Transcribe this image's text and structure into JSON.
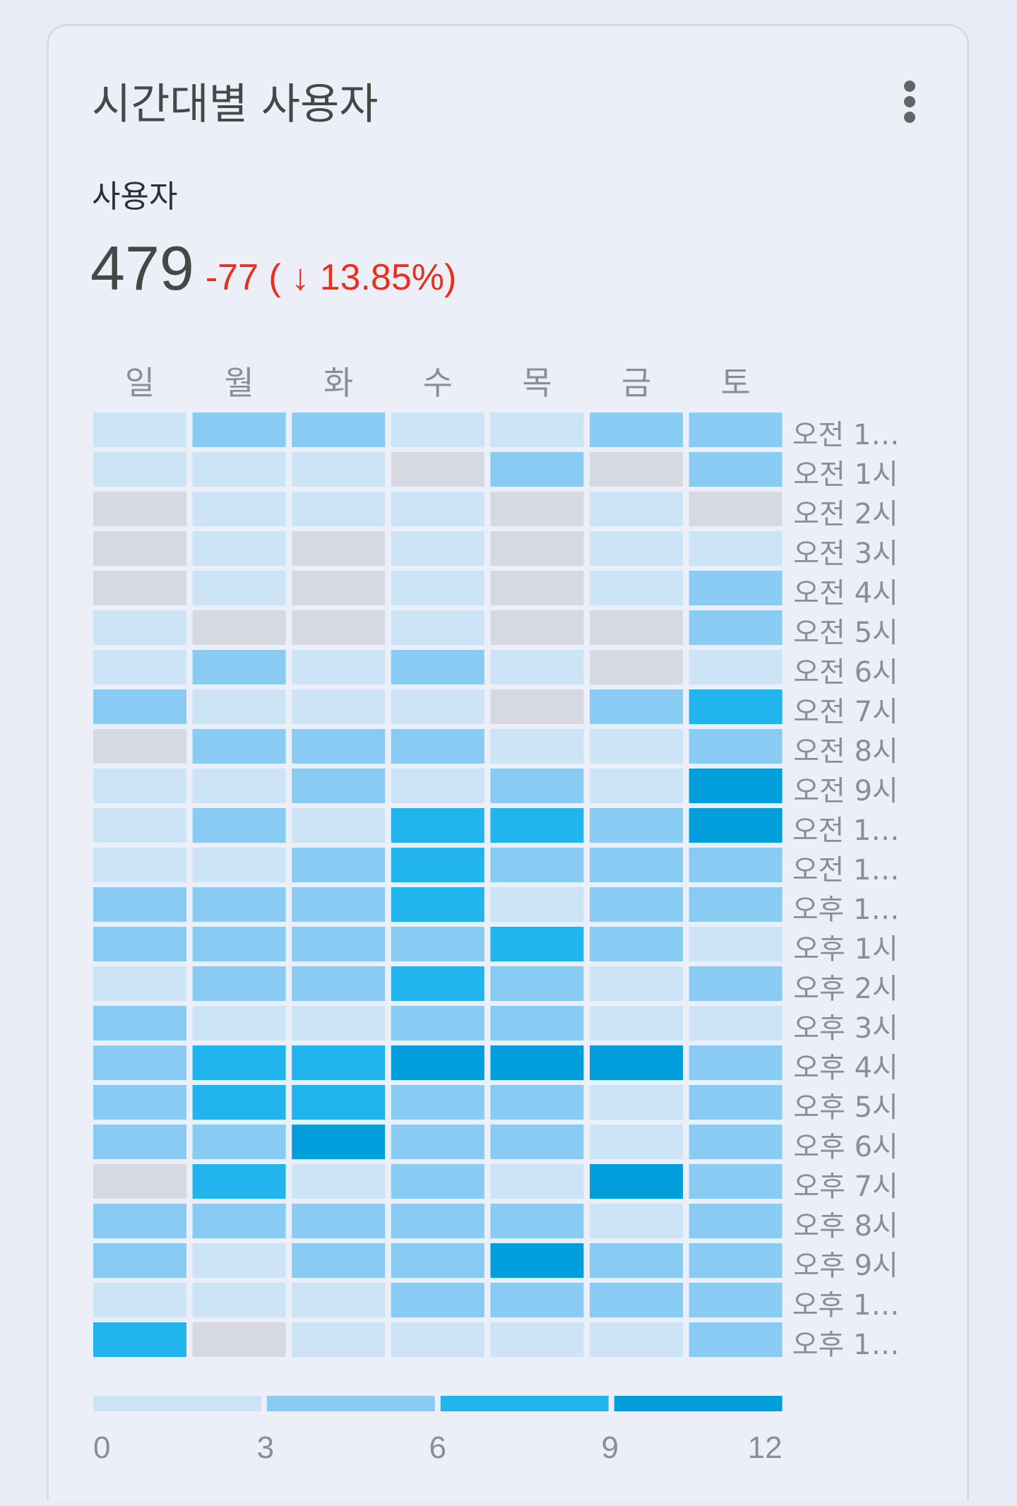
{
  "card": {
    "title": "시간대별 사용자",
    "metric_label": "사용자",
    "metric_value": "479",
    "metric_change": "-77 ( ↓ 13.85%)",
    "more_icon": "more-vert-icon"
  },
  "colors": {
    "no_data": "#d6d9e1",
    "bin_0_3": "#cde3f6",
    "bin_3_6": "#89cbf3",
    "bin_6_9": "#22b4ec",
    "bin_9_12": "#039fdc",
    "change_negative": "#e8311a"
  },
  "chart_data": {
    "type": "heatmap",
    "title": "",
    "columns": [
      "일",
      "월",
      "화",
      "수",
      "목",
      "금",
      "토"
    ],
    "rows": [
      "오전 1…",
      "오전 1시",
      "오전 2시",
      "오전 3시",
      "오전 4시",
      "오전 5시",
      "오전 6시",
      "오전 7시",
      "오전 8시",
      "오전 9시",
      "오전 1…",
      "오전 1…",
      "오후 1…",
      "오후 1시",
      "오후 2시",
      "오후 3시",
      "오후 4시",
      "오후 5시",
      "오후 6시",
      "오후 7시",
      "오후 8시",
      "오후 9시",
      "오후 1…",
      "오후 1…"
    ],
    "bins": [
      "no data",
      "0–3",
      "3–6",
      "6–9",
      "9–12"
    ],
    "levels": [
      [
        1,
        2,
        2,
        1,
        1,
        2,
        2
      ],
      [
        1,
        1,
        1,
        0,
        2,
        0,
        2
      ],
      [
        0,
        1,
        1,
        1,
        0,
        1,
        0
      ],
      [
        0,
        1,
        0,
        1,
        0,
        1,
        1
      ],
      [
        0,
        1,
        0,
        1,
        0,
        1,
        2
      ],
      [
        1,
        0,
        0,
        1,
        0,
        0,
        2
      ],
      [
        1,
        2,
        1,
        2,
        1,
        0,
        1
      ],
      [
        2,
        1,
        1,
        1,
        0,
        2,
        3
      ],
      [
        0,
        2,
        2,
        2,
        1,
        1,
        2
      ],
      [
        1,
        1,
        2,
        1,
        2,
        1,
        4
      ],
      [
        1,
        2,
        1,
        3,
        3,
        2,
        4
      ],
      [
        1,
        1,
        2,
        3,
        2,
        2,
        2
      ],
      [
        2,
        2,
        2,
        3,
        1,
        2,
        2
      ],
      [
        2,
        2,
        2,
        2,
        3,
        2,
        1
      ],
      [
        1,
        2,
        2,
        3,
        2,
        1,
        2
      ],
      [
        2,
        1,
        1,
        2,
        2,
        1,
        1
      ],
      [
        2,
        3,
        3,
        4,
        4,
        4,
        2
      ],
      [
        2,
        3,
        3,
        2,
        2,
        1,
        2
      ],
      [
        2,
        2,
        4,
        2,
        2,
        1,
        2
      ],
      [
        0,
        3,
        1,
        2,
        1,
        4,
        2
      ],
      [
        2,
        2,
        2,
        2,
        2,
        1,
        2
      ],
      [
        2,
        1,
        2,
        2,
        4,
        2,
        2
      ],
      [
        1,
        1,
        1,
        2,
        2,
        2,
        2
      ],
      [
        3,
        0,
        1,
        1,
        1,
        1,
        2
      ]
    ],
    "scale": {
      "ticks": [
        "0",
        "3",
        "6",
        "9",
        "12"
      ],
      "min": 0,
      "max": 12
    }
  }
}
